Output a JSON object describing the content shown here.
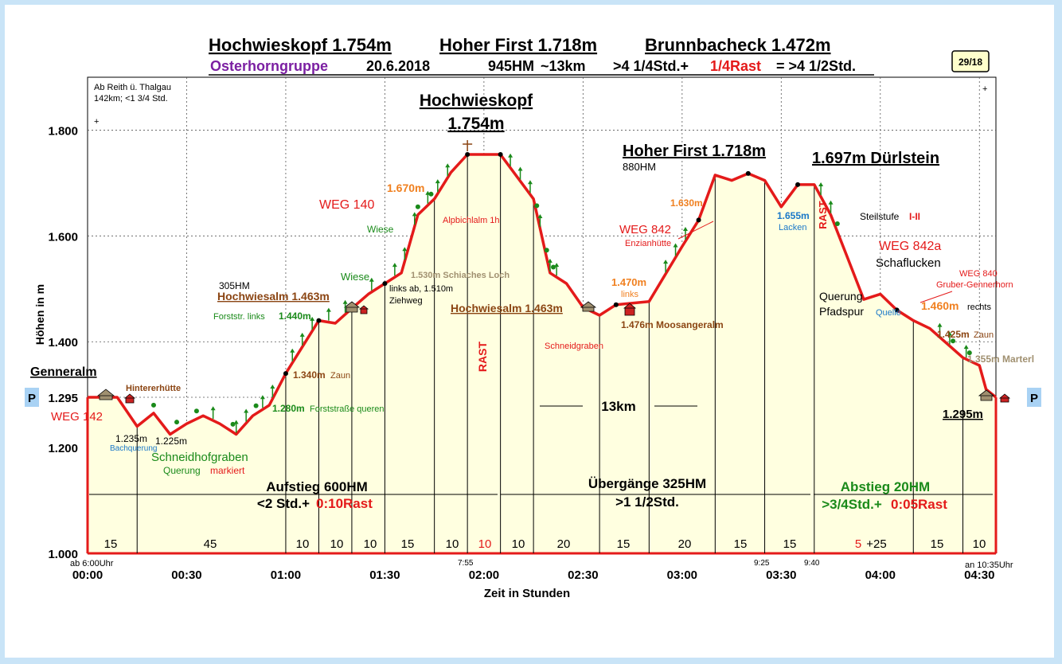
{
  "header": {
    "peaks": [
      "Hochwieskopf 1.754m",
      "Hoher First 1.718m",
      "Brunnbacheck 1.472m"
    ],
    "group": "Osterhorngruppe",
    "date": "20.6.2018",
    "elevation_gain": "945HM",
    "distance": "~13km",
    "time_a": ">4 1/4Std.+",
    "time_rest": "1/4Rast",
    "time_b": "= >4 1/2Std.",
    "badge": "29/18"
  },
  "info": {
    "line1": "Ab Reith ü. Thalgau",
    "line2": "142km; <1 3/4 Std.",
    "plus_left": "+",
    "plus_right": "+"
  },
  "axes": {
    "ylabel": "Höhen in m",
    "xlabel": "Zeit in Stunden",
    "y_ticks": [
      "1.000",
      "1.200",
      "1.295",
      "1.400",
      "1.600",
      "1.800"
    ],
    "x_ticks": [
      "00:00",
      "00:30",
      "01:00",
      "01:30",
      "02:00",
      "02:30",
      "03:00",
      "03:30",
      "04:00",
      "04:30"
    ],
    "start_note": "ab 6:00Uhr",
    "end_note": "an 10:35Uhr",
    "time_marks": [
      "7:55",
      "9:25",
      "9:40"
    ]
  },
  "chart_data": {
    "type": "area",
    "xlabel": "Zeit in Stunden",
    "ylabel": "Höhen in m",
    "ylim": [
      1000,
      1900
    ],
    "xlim_minutes": [
      0,
      275
    ],
    "grid": true,
    "x_minutes": [
      0,
      9,
      15,
      20,
      25,
      30,
      35,
      40,
      45,
      50,
      55,
      60,
      70,
      75,
      80,
      85,
      90,
      95,
      100,
      105,
      110,
      115,
      120,
      125,
      135,
      140,
      145,
      150,
      155,
      160,
      170,
      180,
      185,
      190,
      195,
      200,
      205,
      210,
      215,
      220,
      225,
      230,
      235,
      240,
      245,
      250,
      255,
      265,
      270,
      272,
      275
    ],
    "elevation_m": [
      1295,
      1295,
      1240,
      1265,
      1225,
      1245,
      1260,
      1245,
      1225,
      1260,
      1280,
      1340,
      1440,
      1435,
      1463,
      1490,
      1510,
      1530,
      1640,
      1670,
      1720,
      1754,
      1754,
      1754,
      1670,
      1530,
      1510,
      1465,
      1450,
      1470,
      1476,
      1580,
      1630,
      1715,
      1705,
      1718,
      1705,
      1655,
      1697,
      1697,
      1640,
      1560,
      1480,
      1490,
      1460,
      1440,
      1425,
      1370,
      1355,
      1310,
      1295
    ],
    "segment_minutes": [
      "15",
      "45",
      "10",
      "10",
      "10",
      "15",
      "10",
      "10",
      "10",
      "20",
      "15",
      "20",
      "15",
      "15",
      "5",
      "+25",
      "15",
      "10"
    ],
    "phases": [
      {
        "name": "Aufstieg 600HM",
        "time": "<2 Std.+",
        "rest": "0:10Rast"
      },
      {
        "name": "Übergänge 325HM",
        "time": ">1 1/2Std."
      },
      {
        "name": "Abstieg 20HM",
        "time": ">3/4Std.+",
        "rest": "0:05Rast"
      }
    ],
    "distance_label": "13km"
  },
  "labels": {
    "genneralm": "Genneralm",
    "weg142": "WEG 142",
    "hintererhuette": "Hintererhütte",
    "l1235": "1.235m",
    "bachquerung": "Bachquerung",
    "l1225": "1.225m",
    "schneidhofgraben": "Schneidhofgraben",
    "querung": "Querung",
    "markiert": "markiert",
    "l1280": "1.280m",
    "forststrasse_queren": "Forststraße queren",
    "l1340": "1.340m",
    "zaun": "Zaun",
    "forststr_links": "Forststr. links",
    "l1440": "1.440m",
    "hm305": "305HM",
    "hochwiesalm1": "Hochwiesalm 1.463m",
    "wiese1": "Wiese",
    "links_ab": "links ab, 1.510m",
    "ziehweg": "Ziehweg",
    "wiese2": "Wiese",
    "weg140": "WEG 140",
    "l1670": "1.670m",
    "alpbichlalm": "Alpbichlalm 1h",
    "schiaches_loch": "1.530m Schiaches Loch",
    "hochwieskopf": "Hochwieskopf",
    "hochwieskopf_h": "1.754m",
    "rast1": "RAST",
    "hochwiesalm2": "Hochwiesalm 1.463m",
    "schneidgraben": "Schneidgraben",
    "l1470": "1.470m",
    "links": "links",
    "moosangeralm": "1.476m Moosangeralm",
    "weg842": "WEG 842",
    "enzianhuette": "Enzianhütte",
    "l1630": "1.630m",
    "hoherfirst": "Hoher First 1.718m",
    "hm880": "880HM",
    "l1655": "1.655m",
    "lacken": "Lacken",
    "rast2": "RAST",
    "duerlstein": "1.697m Dürlstein",
    "steilstufe": "Steilstufe",
    "steil_grade": "I-II",
    "weg842a": "WEG 842a",
    "schaflucken": "Schaflucken",
    "querung2": "Querung",
    "pfadspur": "Pfadspur",
    "quelle": "Quelle",
    "l1460": "1.460m",
    "rechts": "rechts",
    "weg840": "WEG 840",
    "gruber": "Gruber-Gennerhorn",
    "l1425": "1.425m",
    "zaun2": "Zaun",
    "marterl": "1.355m Marterl",
    "l1295": "1.295m",
    "parking": "P"
  },
  "colors": {
    "fill": "#ffffe0",
    "line": "#e41a1a",
    "green": "#1a8a1a",
    "orange": "#f08020",
    "purple": "#7b1fa2",
    "brown": "#8b4513",
    "blue": "#1a78c8",
    "parking_bg": "#a9d2f4"
  }
}
